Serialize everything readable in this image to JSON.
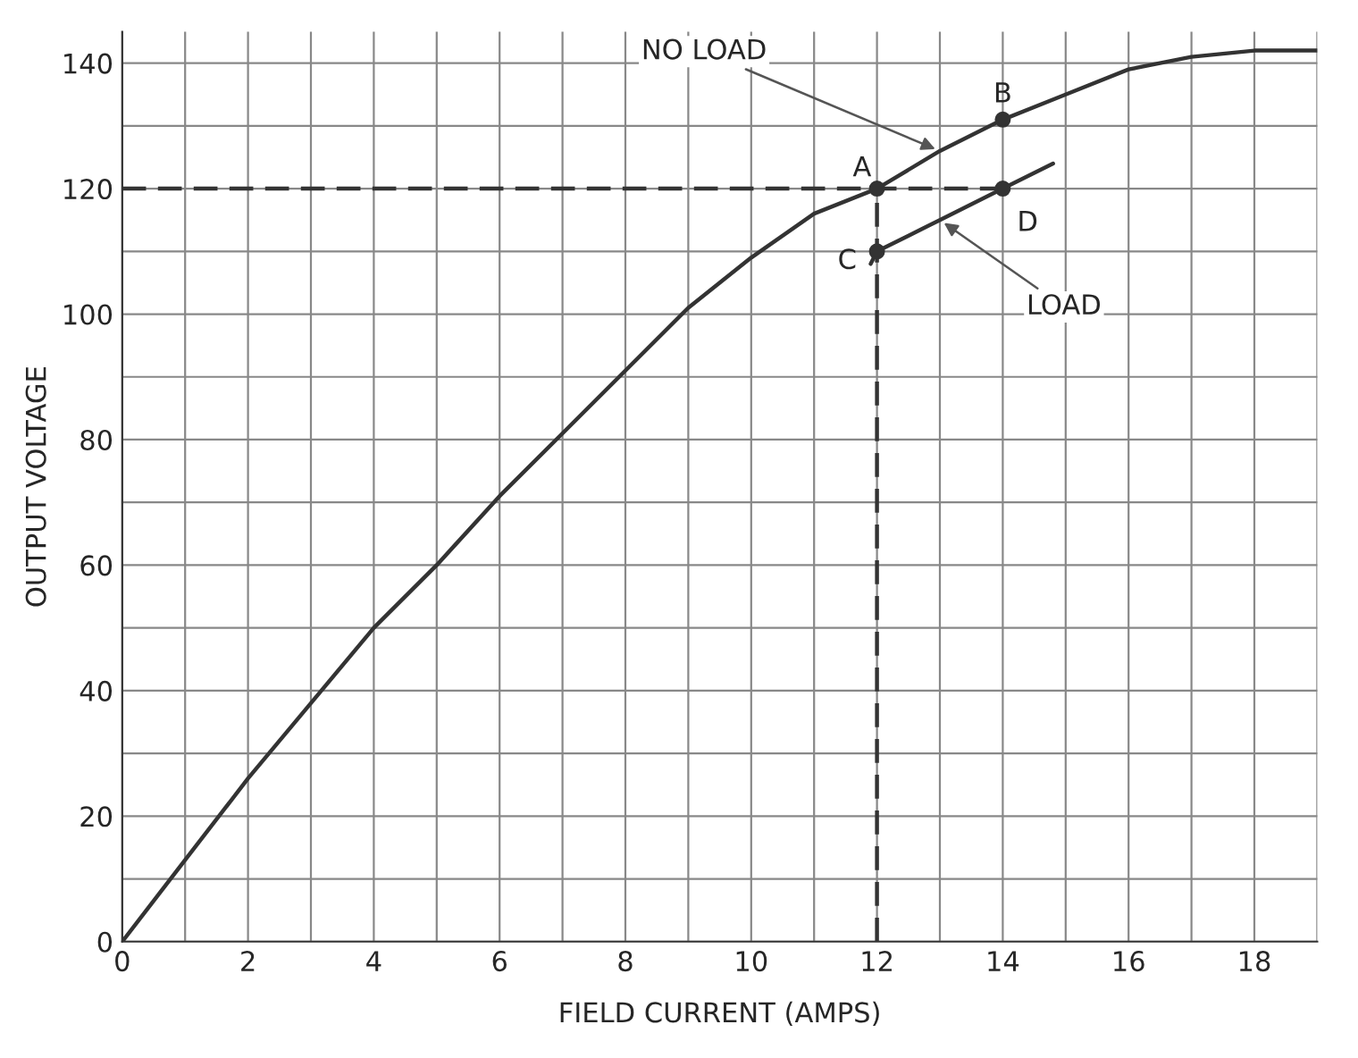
{
  "chart_data": {
    "type": "line",
    "xlabel": "FIELD CURRENT (AMPS)",
    "ylabel": "OUTPUT VOLTAGE",
    "xlim": [
      0,
      19
    ],
    "ylim": [
      0,
      145
    ],
    "xticks": [
      0,
      {
        "value": 1,
        "label": null
      },
      2,
      {
        "value": 3,
        "label": null
      },
      4,
      {
        "value": 5,
        "label": null
      },
      6,
      {
        "value": 7,
        "label": null
      },
      8,
      {
        "value": 9,
        "label": null
      },
      10,
      {
        "value": 11,
        "label": null
      },
      12,
      {
        "value": 13,
        "label": null
      },
      14,
      {
        "value": 15,
        "label": null
      },
      16,
      {
        "value": 17,
        "label": null
      },
      18,
      {
        "value": 19,
        "label": null
      }
    ],
    "yticks": [
      0,
      {
        "value": 10,
        "label": null
      },
      20,
      {
        "value": 30,
        "label": null
      },
      40,
      {
        "value": 50,
        "label": null
      },
      60,
      {
        "value": 70,
        "label": null
      },
      80,
      {
        "value": 90,
        "label": null
      },
      100,
      {
        "value": 110,
        "label": null
      },
      120,
      {
        "value": 130,
        "label": null
      },
      140
    ],
    "grid": true,
    "legend": false,
    "series": [
      {
        "color": "#333333",
        "line_style": "solid",
        "marker": "none",
        "x": [
          0,
          1,
          2,
          3,
          4,
          5,
          6,
          7,
          8,
          9,
          10,
          11,
          12,
          13,
          14,
          15,
          16,
          17,
          18,
          19
        ],
        "values": [
          0,
          13,
          26,
          38,
          50,
          60,
          71,
          81,
          91,
          101,
          109,
          116,
          120,
          126,
          131,
          135,
          139,
          141,
          142,
          142
        ]
      },
      {
        "color": "#333333",
        "line_style": "solid",
        "marker": "none",
        "x": [
          11.9,
          12,
          13,
          14,
          14.8
        ],
        "values": [
          108,
          110,
          115,
          120,
          124
        ]
      },
      {
        "color": "#333333",
        "line_style": "dashed",
        "marker": "none",
        "x": [
          0,
          14
        ],
        "values": [
          120,
          120
        ]
      },
      {
        "color": "#333333",
        "line_style": "dashed",
        "marker": "none",
        "x": [
          12,
          12
        ],
        "values": [
          0,
          120
        ]
      },
      {
        "type": "scatter",
        "color": "#333333",
        "marker": "circle",
        "x": [
          12,
          14,
          12,
          14
        ],
        "values": [
          120,
          131,
          110,
          120
        ]
      }
    ],
    "annotations": [
      {
        "text": "A",
        "x": 12,
        "y": 120
      },
      {
        "text": "B",
        "x": 14,
        "y": 131
      },
      {
        "text": "C",
        "x": 12,
        "y": 110
      },
      {
        "text": "D",
        "x": 14,
        "y": 120
      },
      {
        "text": "NO LOAD",
        "x": 13,
        "y": 126
      },
      {
        "text": "LOAD",
        "x": 13,
        "y": 115
      }
    ]
  }
}
